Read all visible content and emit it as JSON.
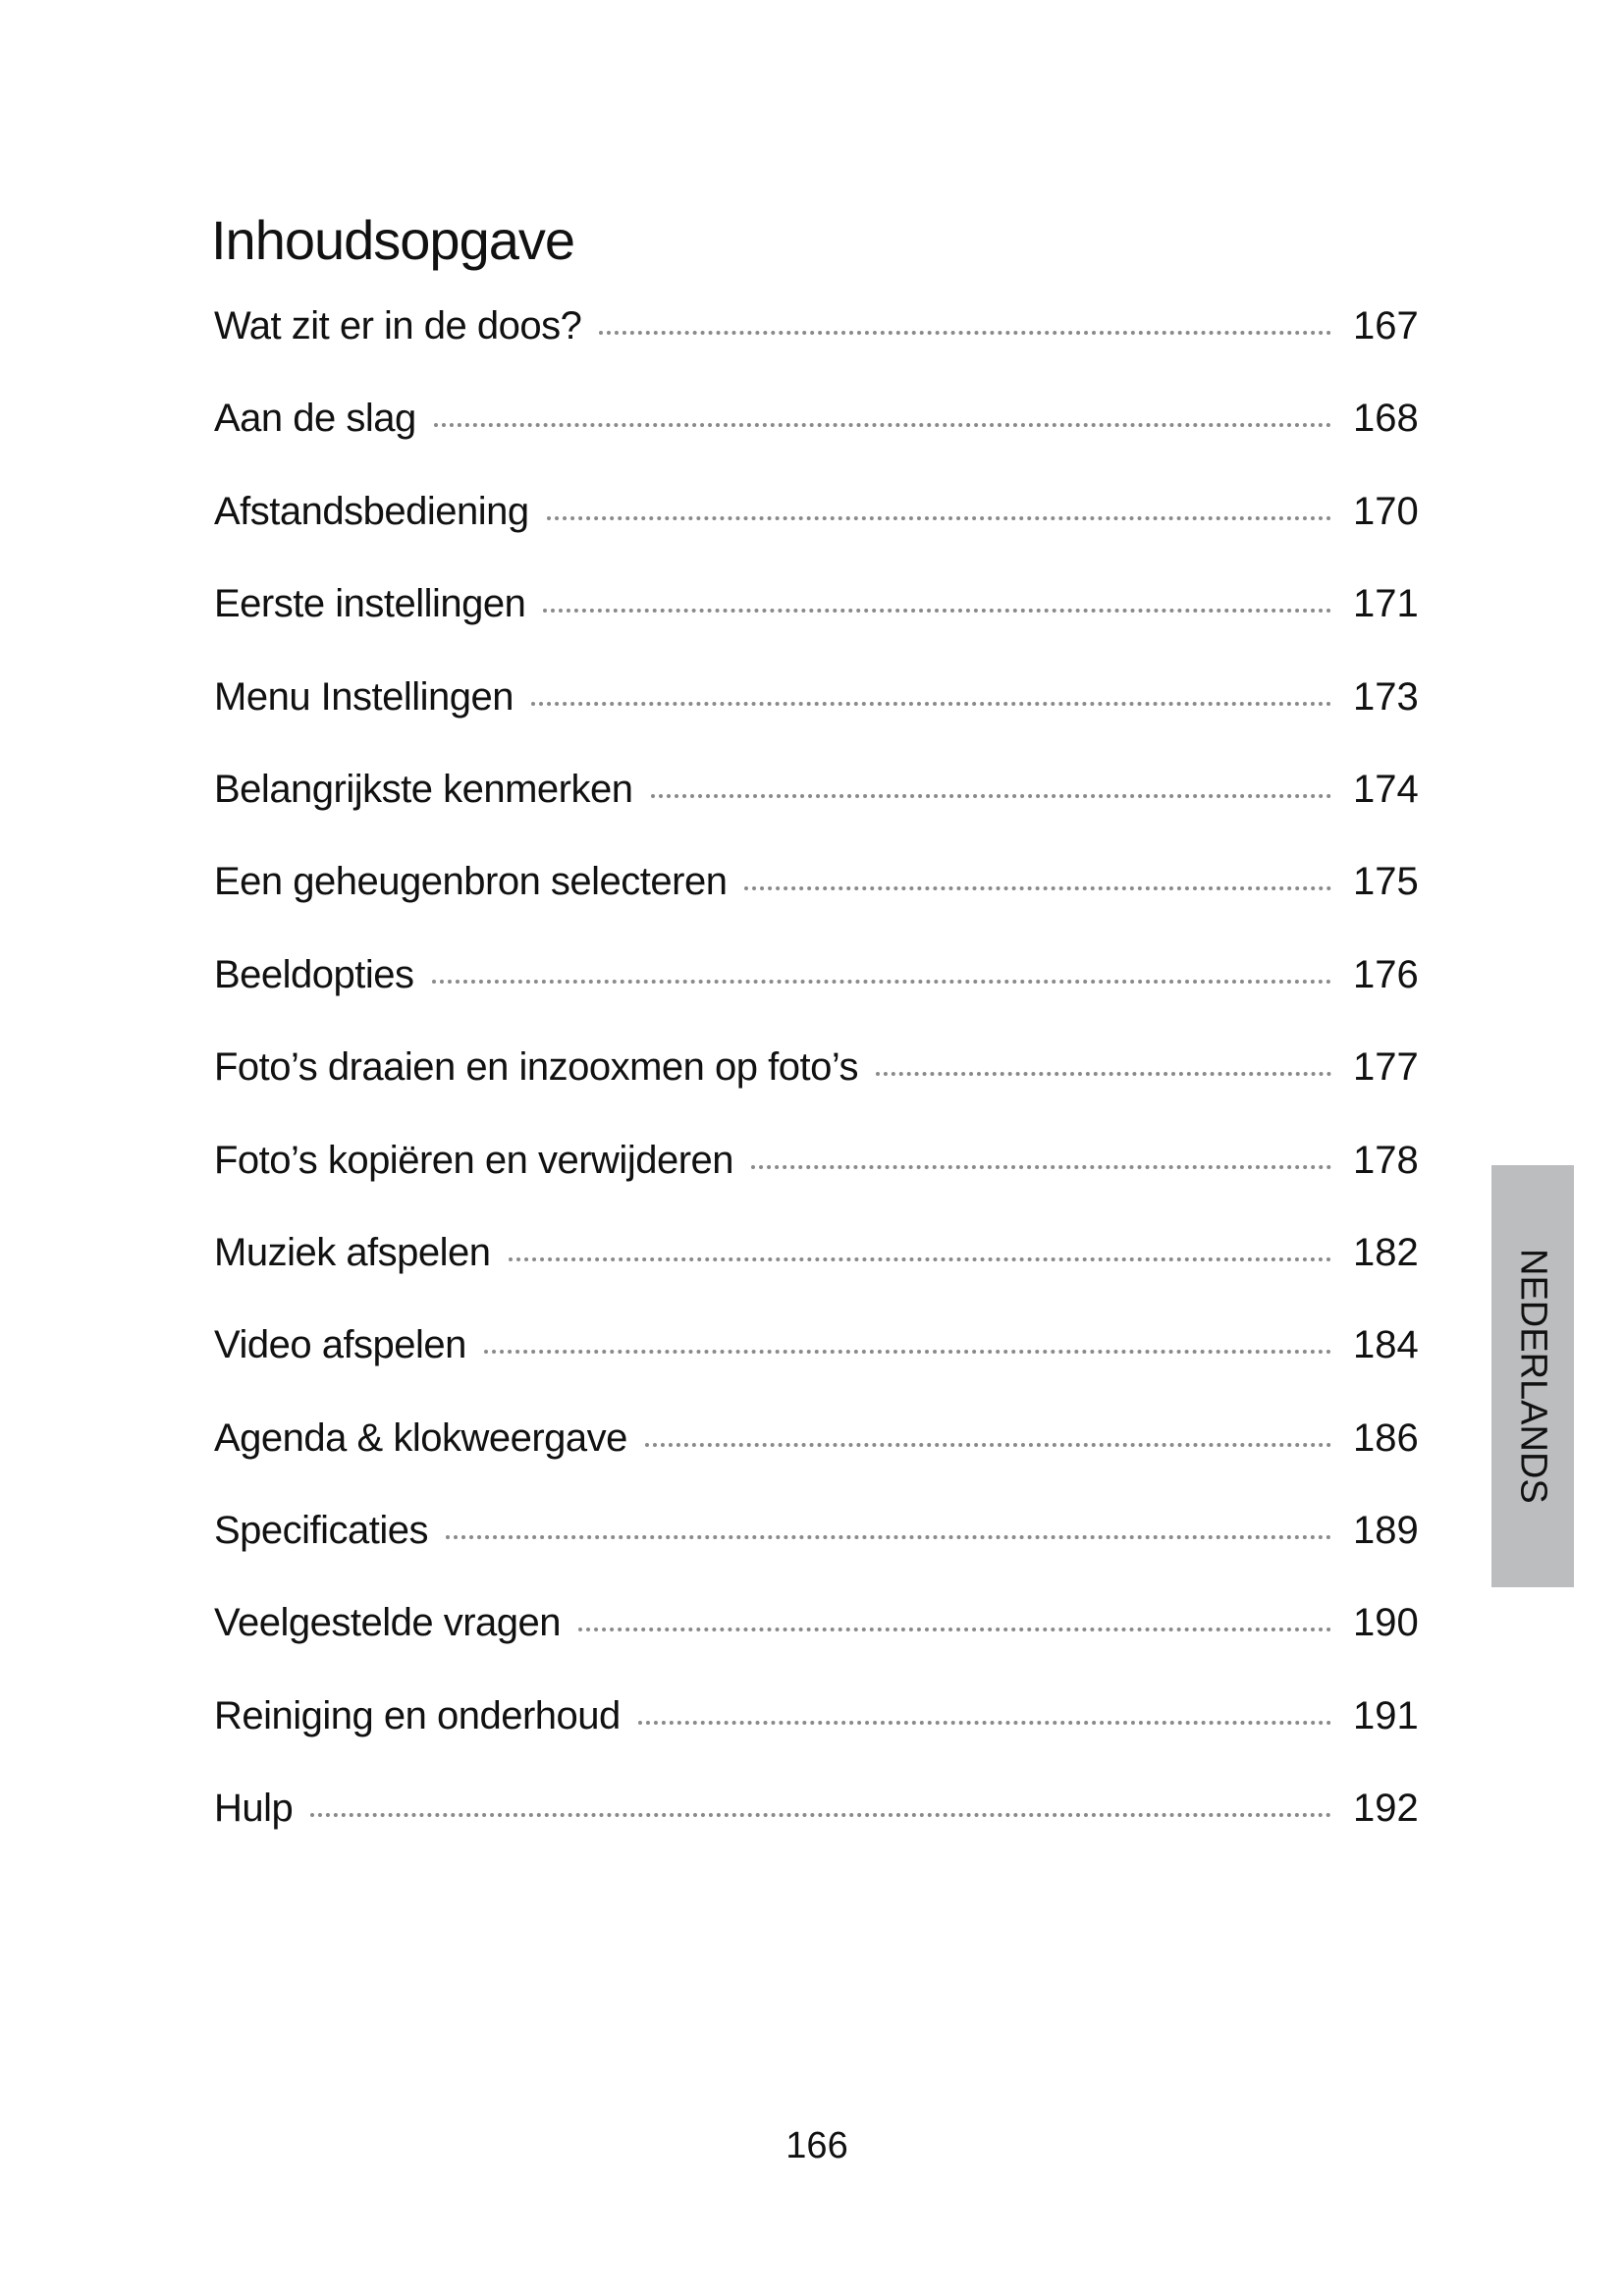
{
  "title": "Inhoudsopgave",
  "entries": [
    {
      "label": "Wat zit er in de doos?",
      "page": "167"
    },
    {
      "label": "Aan de slag",
      "page": "168"
    },
    {
      "label": "Afstandsbediening",
      "page": "170"
    },
    {
      "label": "Eerste instellingen",
      "page": "171"
    },
    {
      "label": "Menu Instellingen",
      "page": "173"
    },
    {
      "label": "Belangrijkste kenmerken",
      "page": "174"
    },
    {
      "label": "Een geheugenbron selecteren",
      "page": "175"
    },
    {
      "label": "Beeldopties",
      "page": "176"
    },
    {
      "label": "Foto’s draaien en inzooxmen op foto’s",
      "page": "177"
    },
    {
      "label": "Foto’s kopiëren en verwijderen",
      "page": "178"
    },
    {
      "label": "Muziek afspelen",
      "page": "182"
    },
    {
      "label": "Video afspelen",
      "page": "184"
    },
    {
      "label": "Agenda & klokweergave",
      "page": "186"
    },
    {
      "label": "Specificaties",
      "page": "189"
    },
    {
      "label": "Veelgestelde vragen",
      "page": "190"
    },
    {
      "label": "Reiniging en onderhoud",
      "page": "191"
    },
    {
      "label": "Hulp",
      "page": "192"
    }
  ],
  "language_tab": {
    "label": "NEDERLANDS",
    "color": "#bcbdbf"
  },
  "page_number": "166"
}
